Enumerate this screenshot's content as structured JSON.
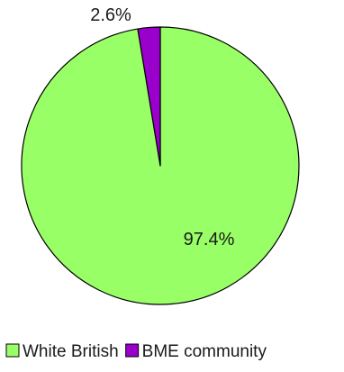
{
  "chart_data": {
    "type": "pie",
    "title": "",
    "slices": [
      {
        "label": "White British",
        "value": 97.4,
        "value_label": "97.4%",
        "color": "#99ff66"
      },
      {
        "label": "BME community",
        "value": 2.6,
        "value_label": "2.6%",
        "color": "#9900cc"
      }
    ],
    "start_angle_deg": 0,
    "direction": "clockwise",
    "legend": {
      "position": "bottom",
      "entries": [
        "White British",
        "BME community"
      ]
    },
    "slice_border_color": "#000000",
    "value_labels": true
  }
}
